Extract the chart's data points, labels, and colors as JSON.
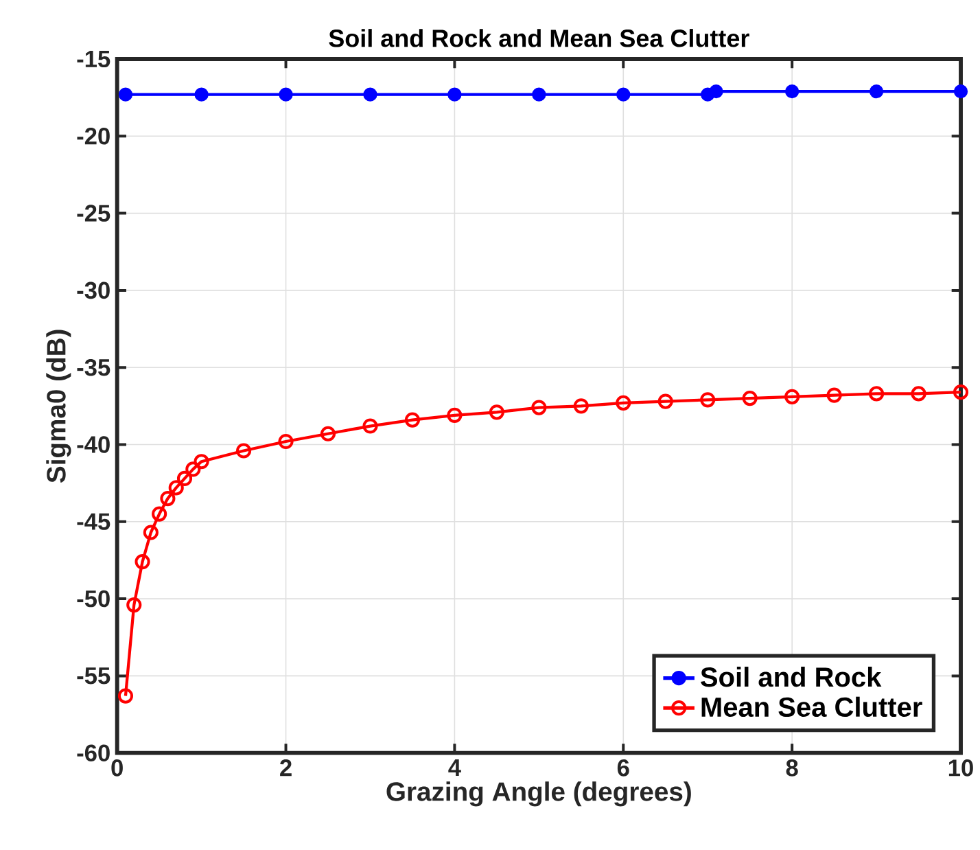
{
  "chart_data": {
    "type": "line",
    "title": "Soil and Rock and Mean Sea Clutter",
    "xlabel": "Grazing Angle (degrees)",
    "ylabel": "Sigma0 (dB)",
    "xlim": [
      0,
      10
    ],
    "xticks": [
      0,
      2,
      4,
      6,
      8,
      10
    ],
    "ylim": [
      -60,
      -15
    ],
    "yticks": [
      -60,
      -55,
      -50,
      -45,
      -40,
      -35,
      -30,
      -25,
      -20,
      -15
    ],
    "grid": true,
    "legend": "bottom right",
    "line_style": "solid",
    "series": [
      {
        "name": "Soil and Rock",
        "color": "#0000ff",
        "marker": "circle",
        "x": [
          0.1,
          1,
          2,
          3,
          4,
          5,
          6,
          7,
          7.1,
          8,
          9,
          10
        ],
        "values": [
          -17.3,
          -17.3,
          -17.3,
          -17.3,
          -17.3,
          -17.3,
          -17.3,
          -17.3,
          -17.1,
          -17.1,
          -17.1,
          -17.1
        ]
      },
      {
        "name": "Mean Sea Clutter",
        "color": "#ff0000",
        "marker": "circle",
        "x": [
          0.1,
          0.2,
          0.3,
          0.4,
          0.5,
          0.6,
          0.7,
          0.8,
          0.9,
          1.0,
          1.5,
          2,
          2.5,
          3,
          3.5,
          4,
          4.5,
          5,
          5.5,
          6,
          6.5,
          7,
          7.5,
          8,
          8.5,
          9,
          9.5,
          10
        ],
        "values": [
          -56.3,
          -50.4,
          -47.6,
          -45.7,
          -44.5,
          -43.5,
          -42.8,
          -42.2,
          -41.6,
          -41.1,
          -40.4,
          -39.8,
          -39.3,
          -38.8,
          -38.4,
          -38.1,
          -37.9,
          -37.6,
          -37.5,
          -37.3,
          -37.2,
          -37.1,
          -37.0,
          -36.9,
          -36.8,
          -36.7,
          -36.7,
          -36.6
        ]
      }
    ]
  }
}
